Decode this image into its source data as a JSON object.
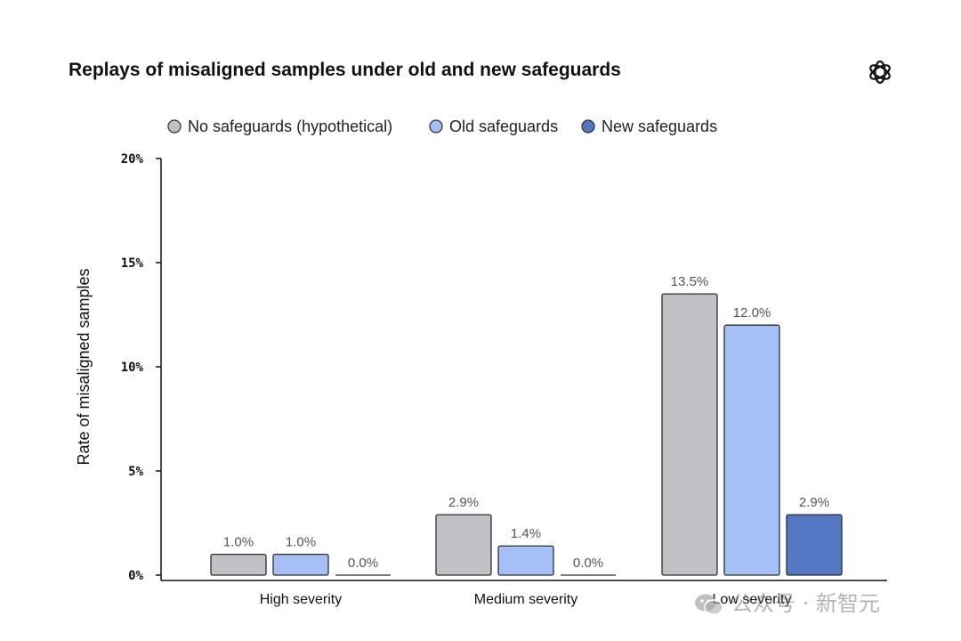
{
  "colors": {
    "no_safeguards": "#c0c1c6",
    "old_safeguards": "#a5bff7",
    "new_safeguards": "#5477c4",
    "bar_stroke": "#2e2e2e",
    "axis": "#111111"
  },
  "watermark": {
    "text": "公众号 · 新智元",
    "icon": "wechat-icon"
  },
  "logo": {
    "icon": "openai-logo-icon"
  },
  "chart_data": {
    "type": "bar",
    "title": "Replays of misaligned samples under old and new safeguards",
    "xlabel": "",
    "ylabel": "Rate of misaligned samples",
    "ylim": [
      0,
      20
    ],
    "yticks": [
      0,
      5,
      10,
      15,
      20
    ],
    "ytick_labels": [
      "0%",
      "5%",
      "10%",
      "15%",
      "20%"
    ],
    "grid": false,
    "legend_position": "top",
    "categories": [
      "High severity",
      "Medium severity",
      "Low severity"
    ],
    "series": [
      {
        "name": "No safeguards (hypothetical)",
        "values": [
          1.0,
          2.9,
          13.5
        ],
        "labels": [
          "1.0%",
          "2.9%",
          "13.5%"
        ],
        "color_key": "no_safeguards"
      },
      {
        "name": "Old safeguards",
        "values": [
          1.0,
          1.4,
          12.0
        ],
        "labels": [
          "1.0%",
          "1.4%",
          "12.0%"
        ],
        "color_key": "old_safeguards"
      },
      {
        "name": "New safeguards",
        "values": [
          0.0,
          0.0,
          2.9
        ],
        "labels": [
          "0.0%",
          "0.0%",
          "2.9%"
        ],
        "color_key": "new_safeguards"
      }
    ]
  }
}
